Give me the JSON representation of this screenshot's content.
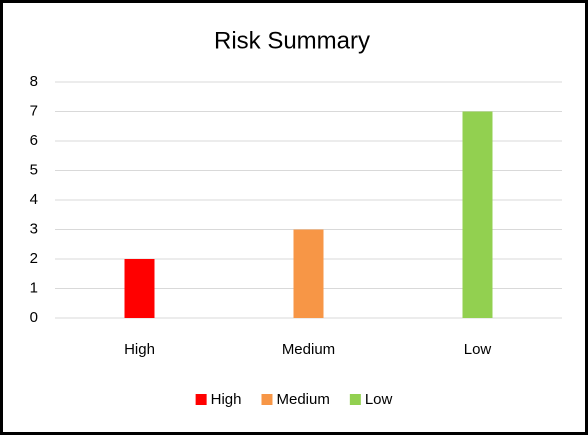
{
  "chart_data": {
    "type": "bar",
    "title": "Risk Summary",
    "categories": [
      "High",
      "Medium",
      "Low"
    ],
    "values": [
      2,
      3,
      7
    ],
    "colors": [
      "#ff0000",
      "#f79646",
      "#92d050"
    ],
    "ylim": [
      0,
      8
    ],
    "yticks": [
      0,
      1,
      2,
      3,
      4,
      5,
      6,
      7,
      8
    ],
    "grid": true,
    "legend": "bottom"
  }
}
